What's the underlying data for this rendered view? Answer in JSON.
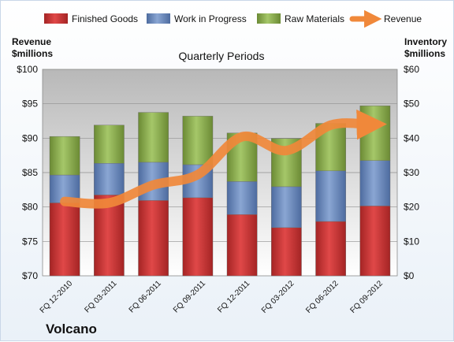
{
  "chart_data": {
    "type": "bar",
    "subtitle": "Quarterly Periods",
    "company": "Volcano",
    "left_axis_label": [
      "Revenue",
      "$millions"
    ],
    "right_axis_label": [
      "Inventory",
      "$millions"
    ],
    "categories": [
      "FQ 12-2010",
      "FQ 03-2011",
      "FQ 06-2011",
      "FQ 09-2011",
      "FQ 12-2011",
      "FQ 03-2012",
      "FQ 06-2012",
      "FQ 09-2012"
    ],
    "left_axis": {
      "min": 70,
      "max": 100,
      "step": 5,
      "tick_labels": [
        "$70",
        "$75",
        "$80",
        "$85",
        "$90",
        "$95",
        "$100"
      ]
    },
    "right_axis": {
      "min": 0,
      "max": 60,
      "step": 10,
      "tick_labels": [
        "$0",
        "$10",
        "$20",
        "$30",
        "$40",
        "$50",
        "$60"
      ]
    },
    "stack_series": [
      {
        "name": "Finished Goods",
        "axis": "right",
        "color": "#d13a3a",
        "values": [
          21.2,
          23.5,
          21.9,
          22.7,
          17.8,
          14.0,
          15.8,
          20.3
        ]
      },
      {
        "name": "Work in Progress",
        "axis": "right",
        "color": "#6f8dc0",
        "values": [
          8.1,
          9.2,
          11.1,
          9.6,
          9.6,
          11.9,
          14.7,
          13.2
        ]
      },
      {
        "name": "Raw Materials",
        "axis": "right",
        "color": "#8cb04c",
        "values": [
          11.2,
          11.1,
          14.5,
          14.1,
          14.1,
          14.0,
          13.8,
          15.9
        ]
      }
    ],
    "line_series": {
      "name": "Revenue",
      "axis": "left",
      "color": "#f0883a",
      "values": [
        80.8,
        80.6,
        83.2,
        84.7,
        90.2,
        88.2,
        91.9,
        92.0
      ]
    },
    "legend": [
      "Finished Goods",
      "Work in Progress",
      "Raw Materials",
      "Revenue"
    ],
    "grid": true,
    "legend_position": "top"
  }
}
